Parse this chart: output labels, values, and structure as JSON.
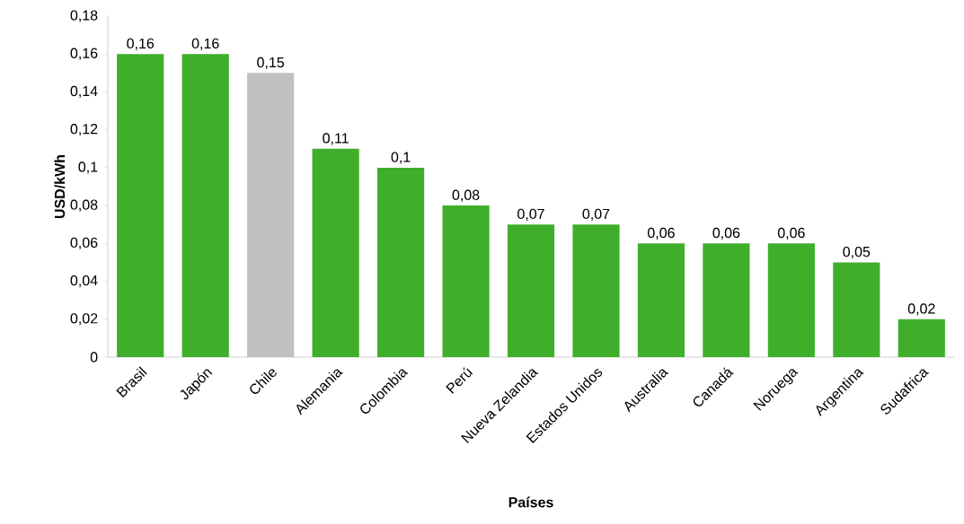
{
  "chart_data": {
    "type": "bar",
    "xlabel": "Países",
    "ylabel": "USD/kWh",
    "categories": [
      "Brasil",
      "Japón",
      "Chile",
      "Alemania",
      "Colombia",
      "Perú",
      "Nueva Zelandia",
      "Estados Unidos",
      "Australia",
      "Canadá",
      "Noruega",
      "Argentina",
      "Sudafrica"
    ],
    "values": [
      0.16,
      0.16,
      0.15,
      0.11,
      0.1,
      0.08,
      0.07,
      0.07,
      0.06,
      0.06,
      0.06,
      0.05,
      0.02
    ],
    "colors": [
      "#3fae2a",
      "#3fae2a",
      "#c0c0c0",
      "#3fae2a",
      "#3fae2a",
      "#3fae2a",
      "#3fae2a",
      "#3fae2a",
      "#3fae2a",
      "#3fae2a",
      "#3fae2a",
      "#3fae2a",
      "#3fae2a"
    ],
    "value_labels": [
      "0,16",
      "0,16",
      "0,15",
      "0,11",
      "0,1",
      "0,08",
      "0,07",
      "0,07",
      "0,06",
      "0,06",
      "0,06",
      "0,05",
      "0,02"
    ],
    "ylim": [
      0,
      0.18
    ],
    "yticks": [
      0,
      {
        "value": 0.02,
        "label": "0,02"
      },
      {
        "value": 0.04,
        "label": "0,04"
      },
      {
        "value": 0.06,
        "label": "0,06"
      },
      {
        "value": 0.08,
        "label": "0,08"
      },
      {
        "value": 0.1,
        "label": "0,1"
      },
      {
        "value": 0.12,
        "label": "0,12"
      },
      {
        "value": 0.14,
        "label": "0,14"
      },
      {
        "value": 0.16,
        "label": "0,16"
      },
      {
        "value": 0.18,
        "label": "0,18"
      }
    ]
  }
}
